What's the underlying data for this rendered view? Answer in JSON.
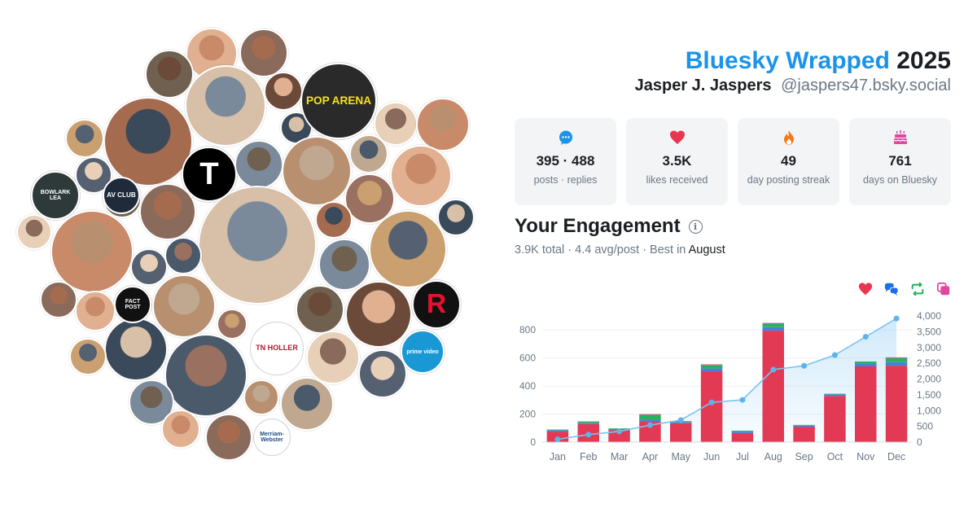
{
  "header": {
    "brand": "Bluesky Wrapped",
    "year": "2025",
    "display_name": "Jasper J. Jaspers",
    "handle": "@jaspers47.bsky.social"
  },
  "stats": [
    {
      "icon": "speech-bubble-icon",
      "value": "395 · 488",
      "label": "posts · replies",
      "color": "#1a93e8"
    },
    {
      "icon": "heart-icon",
      "value": "3.5K",
      "label": "likes received",
      "color": "#e8364f"
    },
    {
      "icon": "flame-icon",
      "value": "49",
      "label": "day posting streak",
      "color": "#f27a1a"
    },
    {
      "icon": "cake-icon",
      "value": "761",
      "label": "days on Bluesky",
      "color": "#e0479e"
    }
  ],
  "engagement": {
    "title": "Your Engagement",
    "total": "3.9K total",
    "avg": "4.4 avg/post",
    "best_prefix": "Best in",
    "best_month": "August",
    "legend": [
      {
        "icon": "heart-icon",
        "color": "#e8364f"
      },
      {
        "icon": "reply-icon",
        "color": "#1a6ee8"
      },
      {
        "icon": "repost-icon",
        "color": "#1eb35a"
      },
      {
        "icon": "quote-icon",
        "color": "#e0479e"
      }
    ]
  },
  "bubbles": [
    {
      "label": "AV CLUB",
      "bg": "#1f2a3a",
      "fg": "#ffffff"
    },
    {
      "label": "POP ARENA",
      "bg": "#2a2a2a",
      "fg": "#f5e21a"
    },
    {
      "label": "T",
      "bg": "#000000",
      "fg": "#ffffff"
    },
    {
      "label": "FACT POST",
      "bg": "#111111",
      "fg": "#ffffff"
    },
    {
      "label": "TN HOLLER",
      "bg": "#ffffff",
      "fg": "#c8102e"
    },
    {
      "label": "R",
      "bg": "#111111",
      "fg": "#e8102e"
    },
    {
      "label": "prime video",
      "bg": "#1a98d5",
      "fg": "#ffffff"
    },
    {
      "label": "Merriam-Webster",
      "bg": "#ffffff",
      "fg": "#1b4a8a"
    },
    {
      "label": "BOWLARK LEA",
      "bg": "#2e3a3a",
      "fg": "#ffffff"
    }
  ],
  "chart_data": {
    "type": "bar",
    "categories": [
      "Jan",
      "Feb",
      "Mar",
      "Apr",
      "May",
      "Jun",
      "Jul",
      "Aug",
      "Sep",
      "Oct",
      "Nov",
      "Dec"
    ],
    "series": [
      {
        "name": "likes",
        "color": "#e23a55",
        "values": [
          75,
          130,
          85,
          145,
          135,
          505,
          65,
          795,
          110,
          330,
          540,
          545
        ]
      },
      {
        "name": "replies",
        "color": "#4a7fe0",
        "values": [
          10,
          8,
          8,
          15,
          8,
          20,
          12,
          25,
          8,
          10,
          20,
          25
        ]
      },
      {
        "name": "reposts",
        "color": "#27b35a",
        "values": [
          5,
          10,
          5,
          35,
          5,
          25,
          5,
          25,
          5,
          5,
          15,
          30
        ]
      },
      {
        "name": "quotes",
        "color": "#e0479e",
        "values": [
          0,
          0,
          0,
          5,
          2,
          5,
          0,
          5,
          0,
          0,
          0,
          5
        ]
      }
    ],
    "cumulative": [
      90,
      240,
      340,
      540,
      700,
      1260,
      1340,
      2300,
      2420,
      2760,
      3340,
      3920
    ],
    "ylim": [
      0,
      900
    ],
    "y_ticks": [
      "0",
      "200",
      "400",
      "600",
      "800"
    ],
    "y2lim": [
      0,
      4000
    ],
    "y2_ticks": [
      "0",
      "500",
      "1,000",
      "1,500",
      "2,000",
      "2,500",
      "3,000",
      "3,500",
      "4,000"
    ]
  }
}
